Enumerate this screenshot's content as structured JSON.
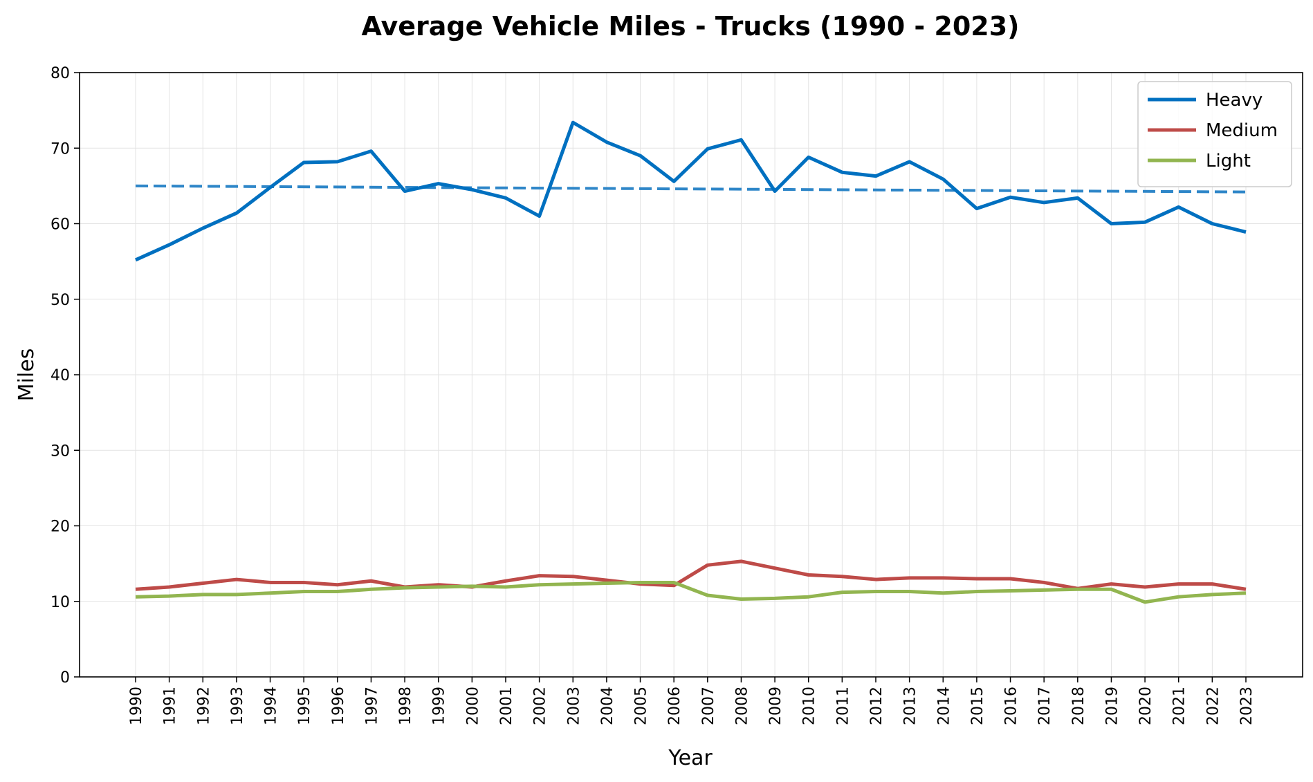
{
  "chart_data": {
    "type": "line",
    "title": "Average Vehicle Miles - Trucks (1990 - 2023)",
    "xlabel": "Year",
    "ylabel": "Miles",
    "ylim": [
      0,
      80
    ],
    "yticks": [
      0,
      10,
      20,
      30,
      40,
      50,
      60,
      70,
      80
    ],
    "grid": true,
    "legend_position": "top-right",
    "x": [
      1990,
      1991,
      1992,
      1993,
      1994,
      1995,
      1996,
      1997,
      1998,
      1999,
      2000,
      2001,
      2002,
      2003,
      2004,
      2005,
      2006,
      2007,
      2008,
      2009,
      2010,
      2011,
      2012,
      2013,
      2014,
      2015,
      2016,
      2017,
      2018,
      2019,
      2020,
      2021,
      2022,
      2023
    ],
    "series": [
      {
        "name": "Heavy",
        "color": "#0070c0",
        "values": [
          55.2,
          57.2,
          59.4,
          61.4,
          64.8,
          68.1,
          68.2,
          69.6,
          64.3,
          65.3,
          64.5,
          63.4,
          61.0,
          73.4,
          70.8,
          69.0,
          65.6,
          69.9,
          71.1,
          64.3,
          68.8,
          66.8,
          66.3,
          68.2,
          65.9,
          62.0,
          63.5,
          62.8,
          63.4,
          60.0,
          60.2,
          62.2,
          60.0,
          58.9
        ],
        "trend": {
          "style": "dashed",
          "color": "#2e86c8",
          "start": 65.0,
          "end": 64.2
        }
      },
      {
        "name": "Medium",
        "color": "#be4b48",
        "values": [
          11.6,
          11.9,
          12.4,
          12.9,
          12.5,
          12.5,
          12.2,
          12.7,
          11.9,
          12.2,
          11.9,
          12.7,
          13.4,
          13.3,
          12.8,
          12.3,
          12.1,
          14.8,
          15.3,
          14.4,
          13.5,
          13.3,
          12.9,
          13.1,
          13.1,
          13.0,
          13.0,
          12.5,
          11.7,
          12.3,
          11.9,
          12.3,
          12.3,
          11.6
        ],
        "trend": null
      },
      {
        "name": "Light",
        "color": "#92b550",
        "values": [
          10.6,
          10.7,
          10.9,
          10.9,
          11.1,
          11.3,
          11.3,
          11.6,
          11.8,
          11.9,
          12.0,
          11.9,
          12.2,
          12.3,
          12.4,
          12.5,
          12.5,
          10.8,
          10.3,
          10.4,
          10.6,
          11.2,
          11.3,
          11.3,
          11.1,
          11.3,
          11.4,
          11.5,
          11.6,
          11.6,
          9.9,
          10.6,
          10.9,
          11.1
        ],
        "trend": null
      }
    ]
  }
}
